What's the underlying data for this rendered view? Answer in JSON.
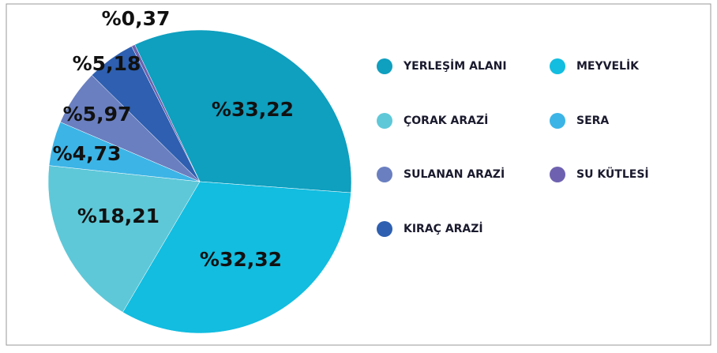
{
  "chart_data": {
    "type": "pie",
    "categories": [
      "YERLEŞİM ALANI",
      "MEYVELİK",
      "ÇORAK ARAZİ",
      "SERA",
      "SULANAN ARAZİ",
      "KIRAÇ ARAZİ",
      "SU KÜTLESİ"
    ],
    "values": [
      33.22,
      32.32,
      18.21,
      4.73,
      5.97,
      5.18,
      0.37
    ],
    "value_labels": [
      "%33,22",
      "%32,32",
      "%18,21",
      "%4,73",
      "%5,97",
      "%5,18",
      "%0,37"
    ],
    "colors": [
      "#0f9fbf",
      "#12bde0",
      "#5ec8d8",
      "#3cb4e6",
      "#6a7fc0",
      "#2e5fb0",
      "#6e62b0"
    ]
  }
}
